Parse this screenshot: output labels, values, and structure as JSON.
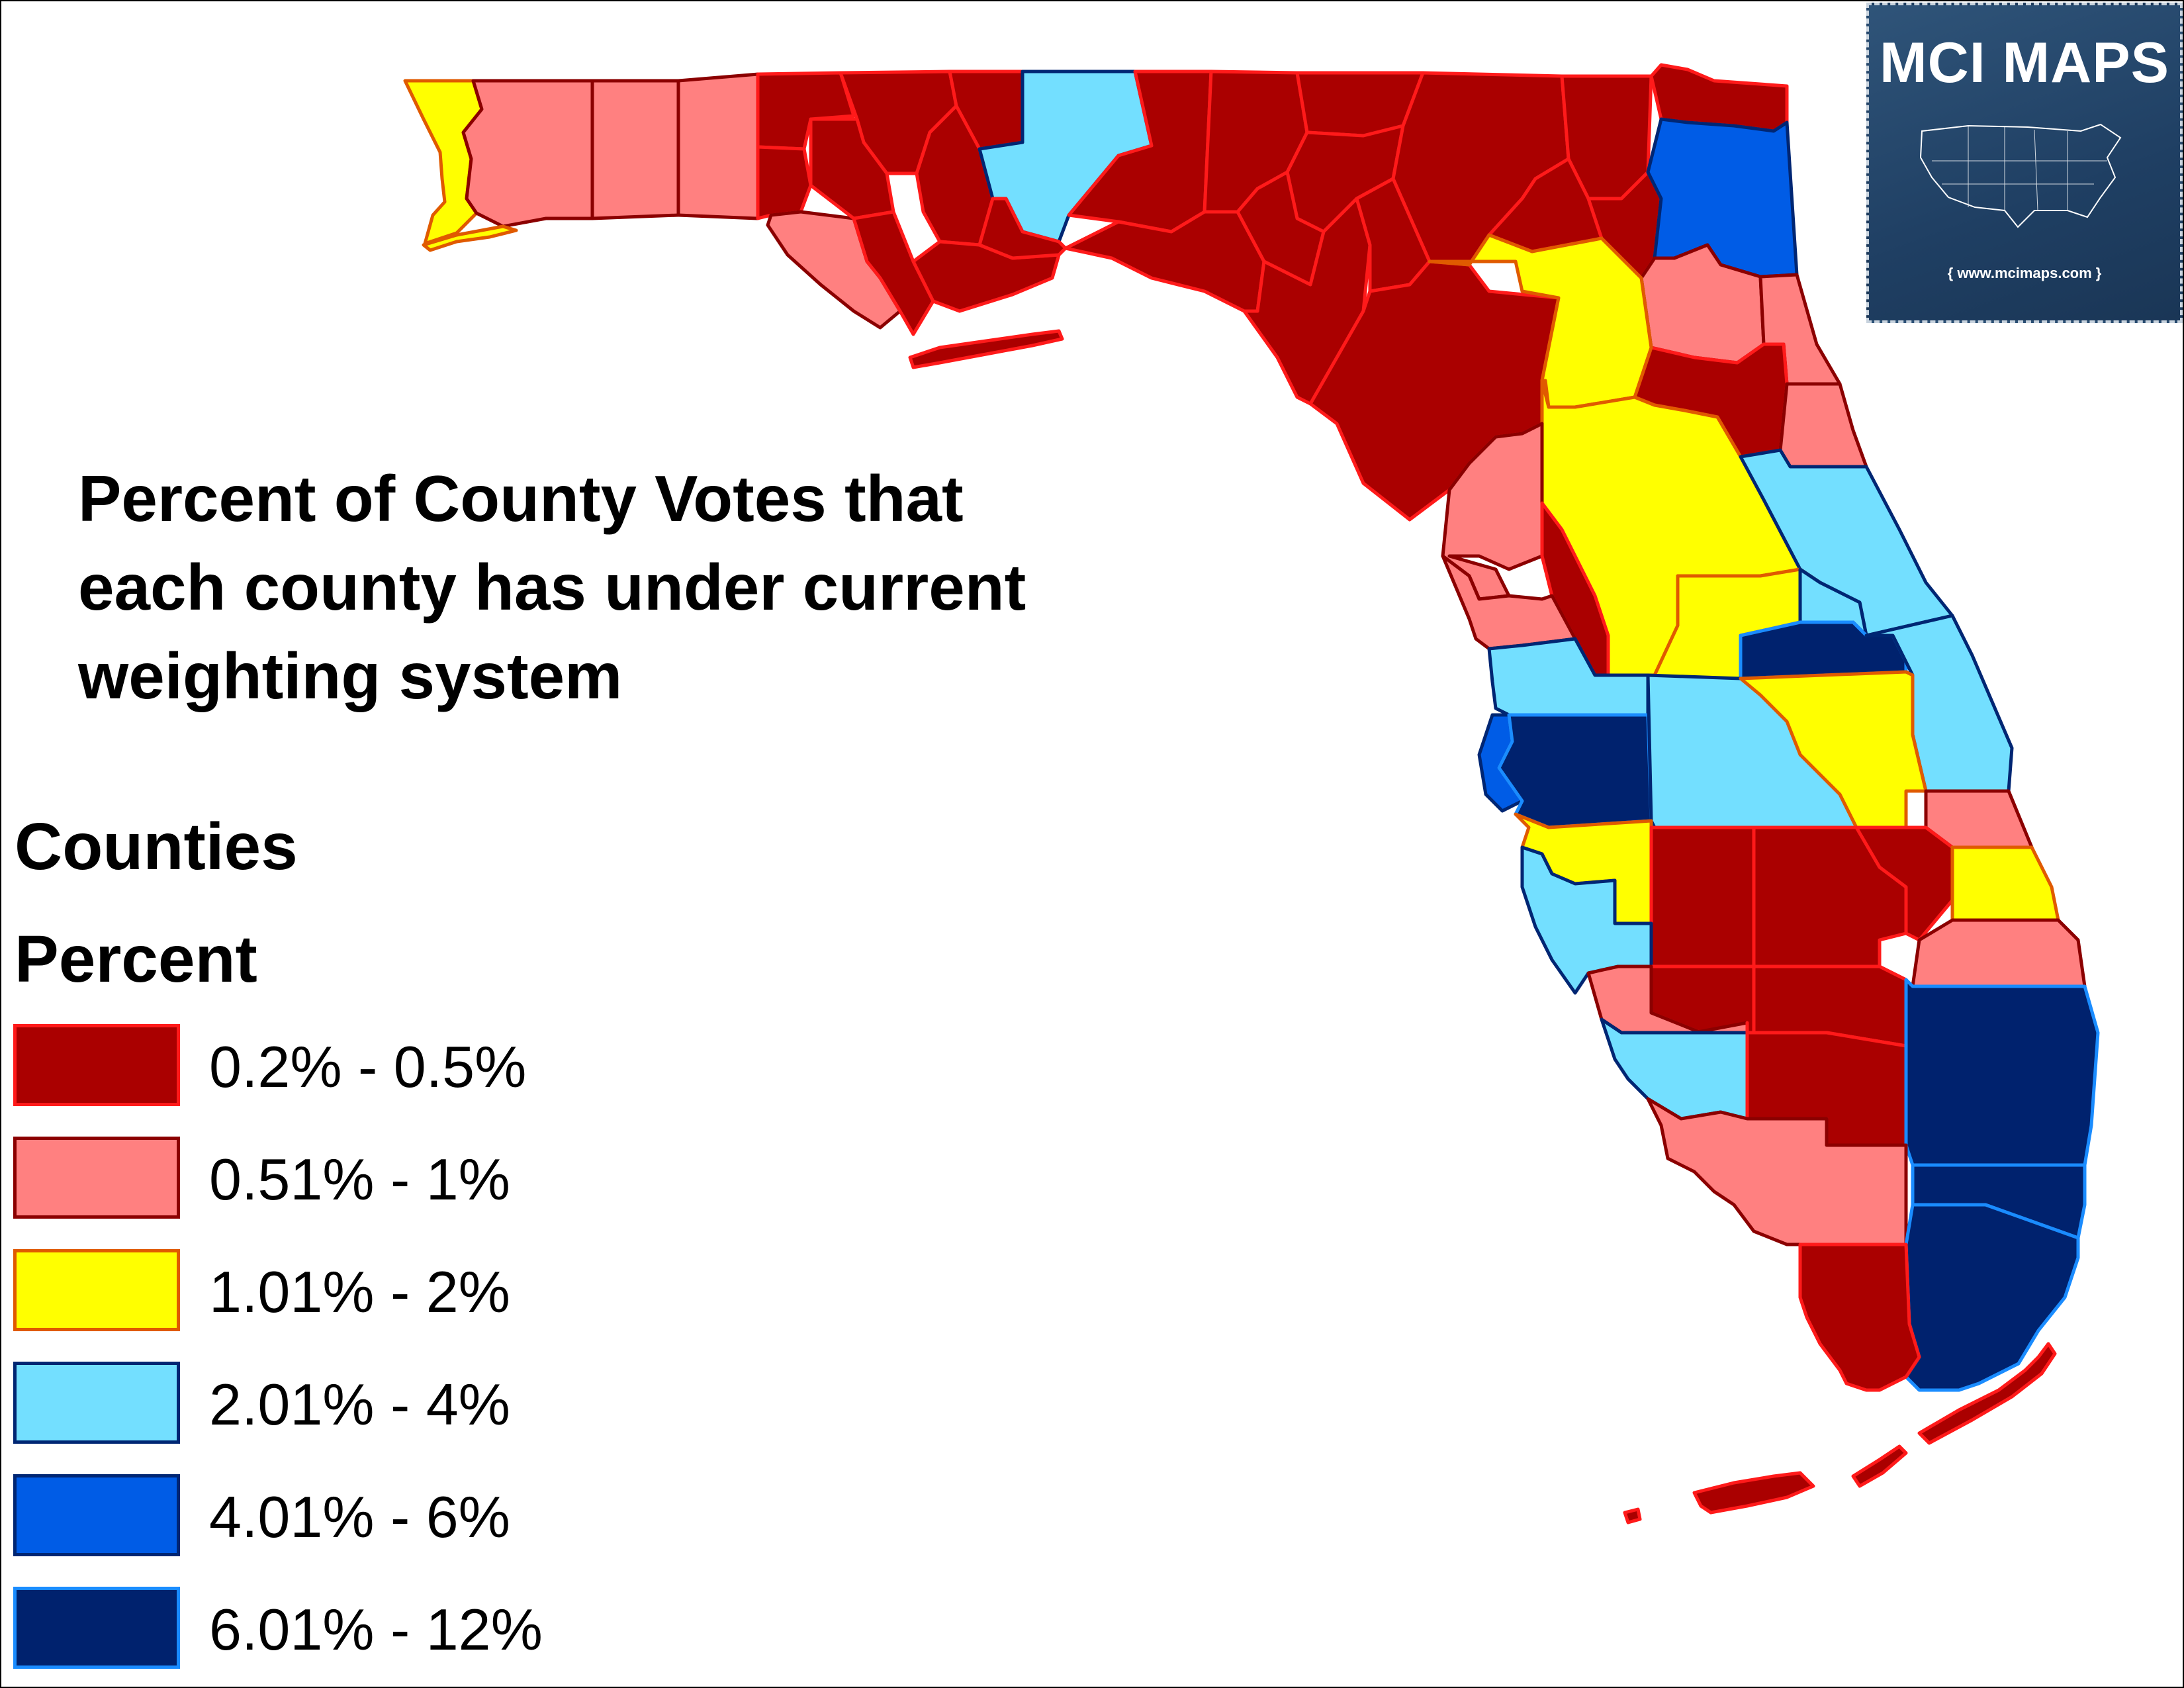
{
  "title": "Percent of County Votes that\neach county has under current\nweighting system",
  "legend": {
    "heading": "Counties",
    "subheading": "Percent",
    "items": [
      {
        "label": "0.2% - 0.5%",
        "fill": "#aa0000",
        "stroke": "#ff1a1a"
      },
      {
        "label": "0.51% - 1%",
        "fill": "#ff8080",
        "stroke": "#8b0000"
      },
      {
        "label": "1.01% - 2%",
        "fill": "#ffff00",
        "stroke": "#e05a00"
      },
      {
        "label": "2.01% - 4%",
        "fill": "#73dfff",
        "stroke": "#002673"
      },
      {
        "label": "4.01% - 6%",
        "fill": "#005ce6",
        "stroke": "#002673"
      },
      {
        "label": "6.01% - 12%",
        "fill": "#00226e",
        "stroke": "#1a8cff"
      }
    ]
  },
  "logo": {
    "title": "MCI MAPS",
    "url": "{ www.mcimaps.com }"
  },
  "map": {
    "region": "Florida",
    "counties": [
      {
        "name": "Escambia",
        "class": 2
      },
      {
        "name": "Santa Rosa",
        "class": 1
      },
      {
        "name": "Okaloosa",
        "class": 1
      },
      {
        "name": "Walton",
        "class": 1
      },
      {
        "name": "Holmes",
        "class": 0
      },
      {
        "name": "Washington",
        "class": 0
      },
      {
        "name": "Bay",
        "class": 1
      },
      {
        "name": "Jackson",
        "class": 0
      },
      {
        "name": "Calhoun",
        "class": 0
      },
      {
        "name": "Gulf",
        "class": 0
      },
      {
        "name": "Gadsden",
        "class": 0
      },
      {
        "name": "Liberty",
        "class": 0
      },
      {
        "name": "Franklin",
        "class": 0
      },
      {
        "name": "Leon",
        "class": 3
      },
      {
        "name": "Wakulla",
        "class": 0
      },
      {
        "name": "Jefferson",
        "class": 0
      },
      {
        "name": "Madison",
        "class": 0
      },
      {
        "name": "Taylor",
        "class": 0
      },
      {
        "name": "Hamilton",
        "class": 0
      },
      {
        "name": "Suwannee",
        "class": 0
      },
      {
        "name": "Lafayette",
        "class": 0
      },
      {
        "name": "Dixie",
        "class": 0
      },
      {
        "name": "Columbia",
        "class": 0
      },
      {
        "name": "Gilchrist",
        "class": 0
      },
      {
        "name": "Levy",
        "class": 0
      },
      {
        "name": "Baker",
        "class": 0
      },
      {
        "name": "Union",
        "class": 0
      },
      {
        "name": "Bradford",
        "class": 0
      },
      {
        "name": "Nassau",
        "class": 0
      },
      {
        "name": "Duval",
        "class": 4
      },
      {
        "name": "Clay",
        "class": 1
      },
      {
        "name": "St. Johns",
        "class": 1
      },
      {
        "name": "Putnam",
        "class": 0
      },
      {
        "name": "Flagler",
        "class": 1
      },
      {
        "name": "Alachua",
        "class": 2
      },
      {
        "name": "Marion",
        "class": 2
      },
      {
        "name": "Volusia",
        "class": 3
      },
      {
        "name": "Citrus",
        "class": 1
      },
      {
        "name": "Sumter",
        "class": 0
      },
      {
        "name": "Lake",
        "class": 2
      },
      {
        "name": "Seminole",
        "class": 3
      },
      {
        "name": "Orange",
        "class": 5
      },
      {
        "name": "Brevard",
        "class": 3
      },
      {
        "name": "Hernando",
        "class": 1
      },
      {
        "name": "Pasco",
        "class": 3
      },
      {
        "name": "Pinellas",
        "class": 4
      },
      {
        "name": "Hillsborough",
        "class": 5
      },
      {
        "name": "Polk",
        "class": 3
      },
      {
        "name": "Osceola",
        "class": 2
      },
      {
        "name": "Indian River",
        "class": 1
      },
      {
        "name": "Manatee",
        "class": 2
      },
      {
        "name": "Hardee",
        "class": 0
      },
      {
        "name": "Highlands",
        "class": 0
      },
      {
        "name": "Okeechobee",
        "class": 0
      },
      {
        "name": "St. Lucie",
        "class": 2
      },
      {
        "name": "Martin",
        "class": 1
      },
      {
        "name": "Sarasota",
        "class": 3
      },
      {
        "name": "DeSoto",
        "class": 0
      },
      {
        "name": "Charlotte",
        "class": 1
      },
      {
        "name": "Glades",
        "class": 0
      },
      {
        "name": "Lee",
        "class": 3
      },
      {
        "name": "Hendry",
        "class": 0
      },
      {
        "name": "Palm Beach",
        "class": 5
      },
      {
        "name": "Collier",
        "class": 1
      },
      {
        "name": "Broward",
        "class": 5
      },
      {
        "name": "Miami-Dade",
        "class": 5
      },
      {
        "name": "Monroe",
        "class": 0
      }
    ]
  }
}
